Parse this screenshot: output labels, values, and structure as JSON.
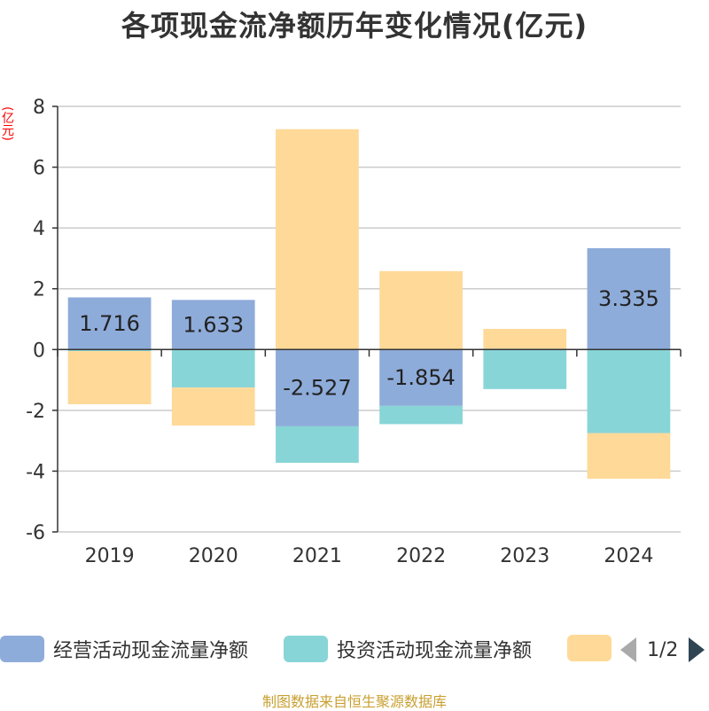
{
  "title": "各项现金流净额历年变化情况(亿元)",
  "unit_label": "(亿元)",
  "source": "制图数据来自恒生聚源数据库",
  "legend": {
    "items": [
      {
        "label": "经营活动现金流量净额",
        "color": "#8eacda"
      },
      {
        "label": "投资活动现金流量净额",
        "color": "#88d5d7"
      },
      {
        "label": "",
        "color": "#fed998"
      }
    ],
    "page": "1/2"
  },
  "chart_data": {
    "type": "bar",
    "stacked": true,
    "categories": [
      "2019",
      "2020",
      "2021",
      "2022",
      "2023",
      "2024"
    ],
    "series": [
      {
        "name": "经营活动现金流量净额",
        "color": "#8eacda",
        "values": [
          1.716,
          1.633,
          -2.527,
          -1.854,
          0.03,
          3.335
        ],
        "labels": [
          "1.716",
          "1.633",
          "-2.527",
          "-1.854",
          "",
          "3.335"
        ]
      },
      {
        "name": "投资活动现金流量净额",
        "color": "#88d5d7",
        "values": [
          -0.05,
          -1.25,
          -1.2,
          -0.6,
          -1.3,
          -2.75
        ]
      },
      {
        "color": "#fed998",
        "values": [
          -1.75,
          -1.25,
          7.25,
          2.58,
          0.65,
          -1.5
        ]
      }
    ],
    "ylim": [
      -6,
      8
    ],
    "yticks": [
      "8",
      "6",
      "4",
      "2",
      "0",
      "-2",
      "-4",
      "-6"
    ],
    "grid": true
  }
}
